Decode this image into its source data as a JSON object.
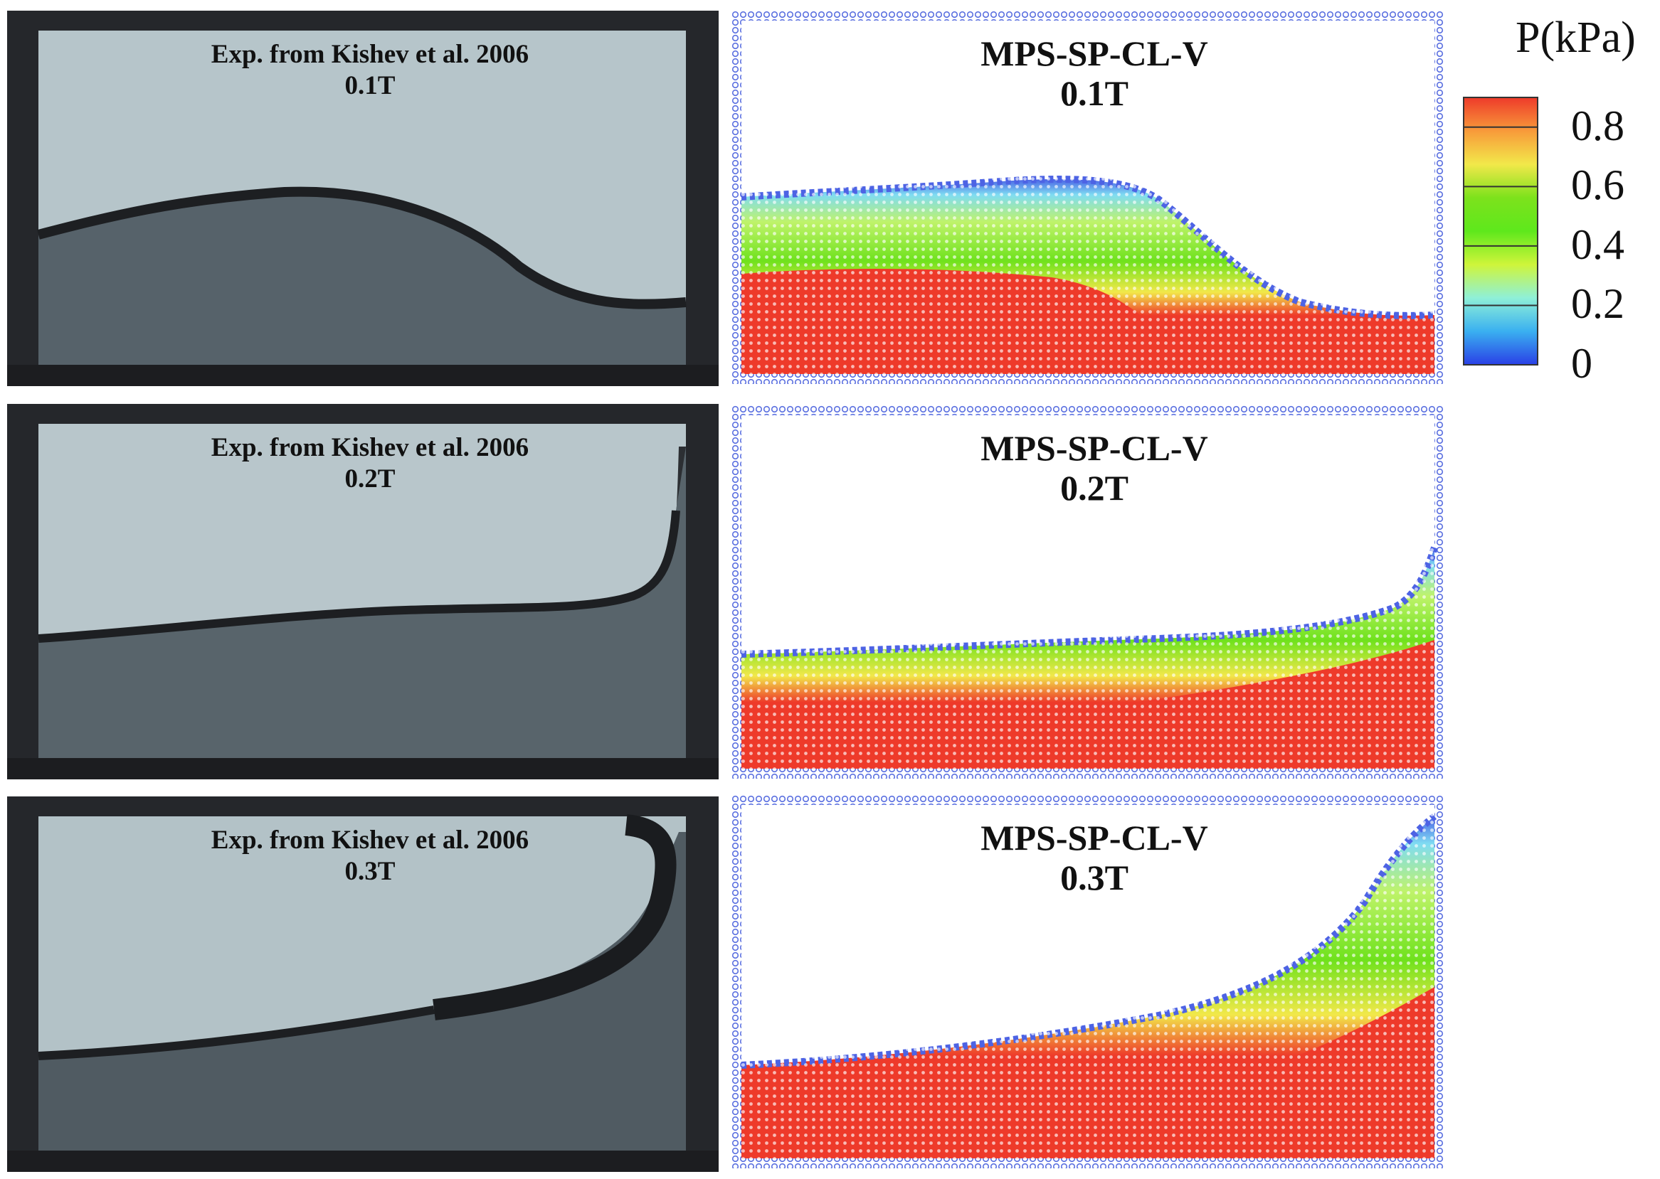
{
  "experiment_panels": [
    {
      "source": "Exp. from Kishev et al. 2006",
      "time": "0.1T"
    },
    {
      "source": "Exp. from Kishev et al. 2006",
      "time": "0.2T"
    },
    {
      "source": "Exp. from Kishev et al. 2006",
      "time": "0.3T"
    }
  ],
  "simulation_panels": [
    {
      "method": "MPS-SP-CL-V",
      "time": "0.1T"
    },
    {
      "method": "MPS-SP-CL-V",
      "time": "0.2T"
    },
    {
      "method": "MPS-SP-CL-V",
      "time": "0.3T"
    }
  ],
  "colorbar": {
    "title": "P(kPa)",
    "ticks": [
      "0.8",
      "0.6",
      "0.4",
      "0.2",
      "0"
    ],
    "range": [
      0,
      0.9
    ],
    "colors": [
      "#2a3fe6",
      "#3ab0f0",
      "#8ff0d8",
      "#cff53a",
      "#5ee81c",
      "#7de21c",
      "#f2e84a",
      "#f89a3a",
      "#ee3a2a"
    ]
  },
  "colors": {
    "wall_particle": "#5a6fe0",
    "experiment_air": "#b9c8cd",
    "experiment_water": "#4e5a61",
    "experiment_frame": "#23252a"
  }
}
